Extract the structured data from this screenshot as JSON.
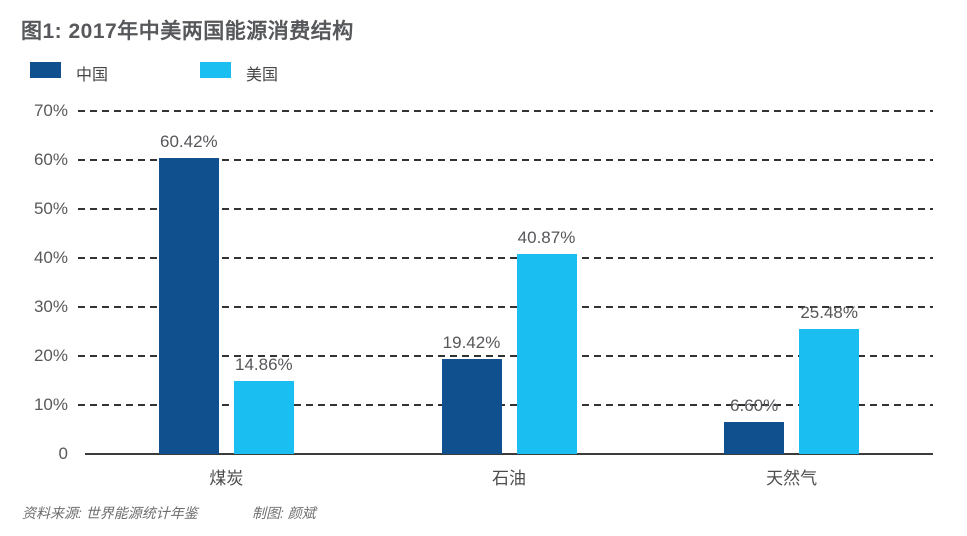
{
  "title": "图1: 2017年中美两国能源消费结构",
  "legend": [
    {
      "label": "中国",
      "color": "#11508F"
    },
    {
      "label": "美国",
      "color": "#1BBEF0"
    }
  ],
  "footer": {
    "source": "资料来源: 世界能源统计年鉴",
    "credit": "制图: 颜斌"
  },
  "chart_data": {
    "type": "bar",
    "title": "图1: 2017年中美两国能源消费结构",
    "categories": [
      "煤炭",
      "石油",
      "天然气"
    ],
    "series": [
      {
        "name": "中国",
        "color": "#11508F",
        "values": [
          60.42,
          19.42,
          6.6
        ],
        "labels": [
          "60.42%",
          "19.42%",
          "6.60%"
        ]
      },
      {
        "name": "美国",
        "color": "#1BBEF0",
        "values": [
          14.86,
          40.87,
          25.48
        ],
        "labels": [
          "14.86%",
          "40.87%",
          "25.48%"
        ]
      }
    ],
    "xlabel": "",
    "ylabel": "",
    "ylim": [
      0,
      70
    ],
    "yticks": [
      {
        "label": "70%",
        "value": 70
      },
      {
        "label": "60%",
        "value": 60
      },
      {
        "label": "50%",
        "value": 50
      },
      {
        "label": "40%",
        "value": 40
      },
      {
        "label": "30%",
        "value": 30
      },
      {
        "label": "20%",
        "value": 20
      },
      {
        "label": "10%",
        "value": 10
      },
      {
        "label": "0",
        "value": 0
      }
    ],
    "grid": "horizontal-dashed",
    "legend_position": "top-left"
  }
}
